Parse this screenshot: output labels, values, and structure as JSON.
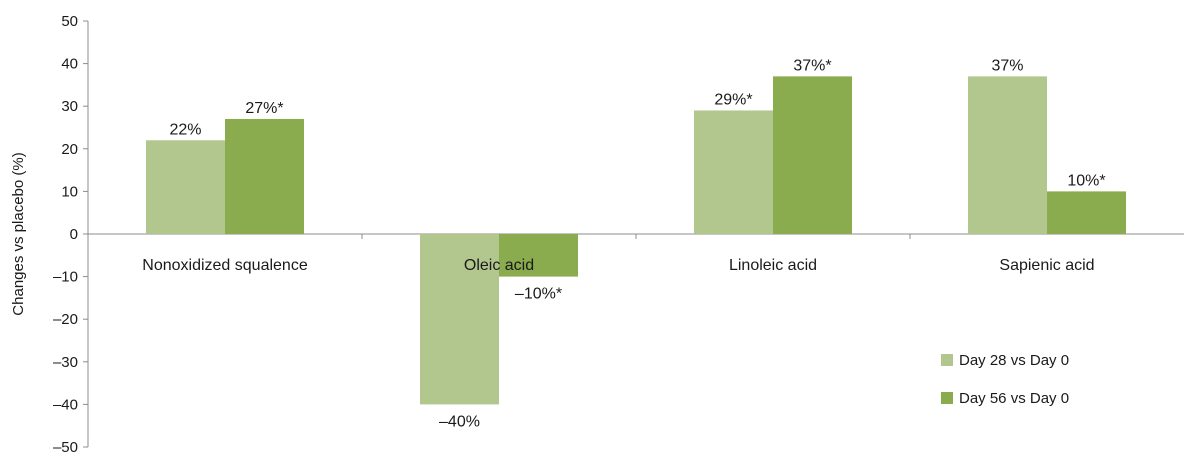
{
  "chart_data": {
    "type": "bar",
    "ylabel": "Changes vs placebo (%)",
    "ylim": [
      -50,
      50
    ],
    "yticks": [
      50,
      40,
      30,
      20,
      10,
      0,
      -10,
      -20,
      -30,
      -40,
      -50
    ],
    "ytick_labels": [
      "50",
      "40",
      "30",
      "20",
      "10",
      "0",
      "–10",
      "–20",
      "–30",
      "–40",
      "–50"
    ],
    "categories": [
      "Nonoxidized squalence",
      "Oleic acid",
      "Linoleic acid",
      "Sapienic acid"
    ],
    "series": [
      {
        "name": "Day 28 vs Day 0",
        "color": "#b1c78e",
        "values": [
          22,
          -40,
          29,
          37
        ],
        "labels": [
          "22%",
          "–40%",
          "29%*",
          "37%"
        ]
      },
      {
        "name": "Day 56 vs Day 0",
        "color": "#8aab4e",
        "values": [
          27,
          -10,
          37,
          10
        ],
        "labels": [
          "27%*",
          "–10%*",
          "37%*",
          "10%*"
        ]
      }
    ],
    "legend_position": "bottom-right",
    "grid": false
  }
}
